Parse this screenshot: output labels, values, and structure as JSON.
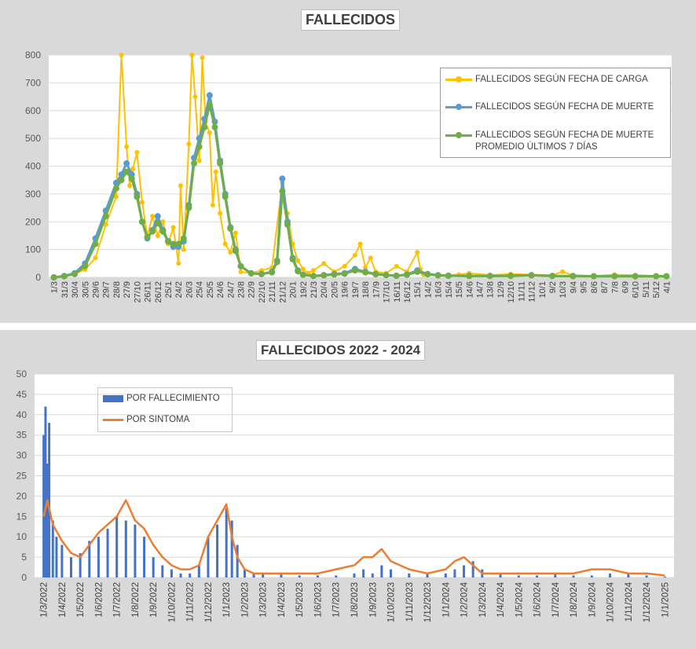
{
  "chart_data": [
    {
      "type": "line",
      "title": "FALLECIDOS",
      "ylim": [
        0,
        800
      ],
      "yticks": [
        0,
        100,
        200,
        300,
        400,
        500,
        600,
        700,
        800
      ],
      "grid": true,
      "legend_position": "top-right",
      "categories": [
        "1/3",
        "31/3",
        "30/4",
        "30/5",
        "29/6",
        "29/7",
        "28/8",
        "27/9",
        "27/10",
        "26/11",
        "26/12",
        "25/1",
        "24/2",
        "26/3",
        "25/4",
        "25/5",
        "24/6",
        "24/7",
        "23/8",
        "22/9",
        "22/10",
        "21/11",
        "21/12",
        "20/1",
        "19/2",
        "21/3",
        "20/4",
        "20/5",
        "19/6",
        "19/7",
        "18/8",
        "17/9",
        "17/10",
        "16/11",
        "16/12",
        "15/1",
        "14/2",
        "16/3",
        "15/4",
        "15/5",
        "14/6",
        "14/7",
        "13/8",
        "12/9",
        "12/10",
        "11/11",
        "11/12",
        "10/1",
        "9/2",
        "10/3",
        "9/4",
        "9/5",
        "8/6",
        "8/7",
        "7/8",
        "6/9",
        "6/10",
        "5/11",
        "5/12",
        "4/1"
      ],
      "series": [
        {
          "name": "FALLECIDOS SEGÚN FECHA DE CARGA",
          "color": "#ffc000",
          "x": [
            0,
            2,
            3,
            4,
            5,
            6,
            6.5,
            7,
            7.3,
            7.6,
            8,
            8.5,
            9,
            9.5,
            10,
            10.5,
            11,
            11.5,
            12,
            12.2,
            12.5,
            13,
            13.3,
            13.6,
            14,
            14.3,
            14.6,
            15,
            15.3,
            15.6,
            16,
            16.5,
            17,
            17.5,
            18,
            19,
            20,
            21,
            22,
            22.5,
            23,
            23.5,
            24,
            24.5,
            25,
            26,
            27,
            28,
            29,
            29.5,
            30,
            30.5,
            31,
            32,
            33,
            34,
            35,
            35.3,
            35.6,
            36,
            37,
            38,
            39,
            40,
            42,
            44,
            46,
            48,
            49,
            50,
            52,
            54,
            56,
            58,
            59
          ],
          "y": [
            0,
            12,
            28,
            70,
            190,
            290,
            800,
            470,
            330,
            390,
            450,
            270,
            150,
            220,
            150,
            200,
            120,
            180,
            50,
            330,
            100,
            480,
            800,
            650,
            420,
            790,
            560,
            520,
            260,
            380,
            230,
            120,
            90,
            160,
            20,
            15,
            25,
            35,
            340,
            230,
            120,
            60,
            30,
            15,
            25,
            50,
            20,
            40,
            80,
            120,
            35,
            70,
            20,
            15,
            40,
            20,
            90,
            30,
            10,
            8,
            10,
            8,
            10,
            15,
            8,
            12,
            10,
            8,
            20,
            8,
            5,
            10,
            8,
            5,
            5
          ]
        },
        {
          "name": "FALLECIDOS SEGÚN FECHA DE MUERTE",
          "color": "#5b9bd5",
          "x": [
            0,
            1,
            2,
            3,
            4,
            5,
            6,
            6.5,
            7,
            7.5,
            8,
            8.5,
            9,
            9.5,
            10,
            10.5,
            11,
            11.5,
            12,
            12.5,
            13,
            13.5,
            14,
            14.5,
            15,
            15.5,
            16,
            16.5,
            17,
            17.5,
            18,
            19,
            20,
            21,
            21.5,
            22,
            22.5,
            23,
            23.5,
            24,
            25,
            26,
            27,
            28,
            29,
            30,
            31,
            32,
            33,
            34,
            35,
            36,
            37,
            38,
            40,
            42,
            44,
            46,
            48,
            50,
            52,
            54,
            56,
            58,
            59
          ],
          "y": [
            0,
            5,
            15,
            50,
            140,
            240,
            340,
            370,
            410,
            370,
            300,
            200,
            140,
            170,
            220,
            170,
            130,
            110,
            110,
            130,
            260,
            430,
            500,
            570,
            655,
            560,
            420,
            300,
            180,
            100,
            40,
            15,
            12,
            20,
            60,
            355,
            200,
            70,
            25,
            10,
            5,
            8,
            12,
            15,
            30,
            20,
            12,
            8,
            6,
            10,
            25,
            12,
            8,
            6,
            5,
            5,
            6,
            8,
            5,
            5,
            4,
            4,
            4,
            4,
            4
          ]
        },
        {
          "name": "FALLECIDOS SEGÚN FECHA DE MUERTE PROMEDIO ÚLTIMOS 7 DÍAS",
          "color": "#70ad47",
          "x": [
            0,
            1,
            2,
            3,
            4,
            5,
            6,
            6.5,
            7,
            7.5,
            8,
            8.5,
            9,
            9.5,
            10,
            10.5,
            11,
            11.5,
            12,
            12.5,
            13,
            13.5,
            14,
            14.5,
            15,
            15.5,
            16,
            16.5,
            17,
            17.5,
            18,
            19,
            20,
            21,
            21.5,
            22,
            22.5,
            23,
            23.5,
            24,
            25,
            26,
            27,
            28,
            29,
            30,
            31,
            32,
            33,
            34,
            35,
            36,
            37,
            38,
            40,
            42,
            44,
            46,
            48,
            50,
            52,
            54,
            56,
            58,
            59
          ],
          "y": [
            0,
            4,
            12,
            40,
            120,
            220,
            320,
            350,
            380,
            355,
            290,
            200,
            145,
            165,
            195,
            165,
            130,
            120,
            120,
            140,
            250,
            410,
            470,
            540,
            620,
            540,
            410,
            290,
            175,
            95,
            40,
            14,
            12,
            18,
            55,
            310,
            190,
            65,
            22,
            9,
            5,
            7,
            10,
            13,
            25,
            18,
            11,
            8,
            6,
            9,
            20,
            11,
            7,
            6,
            5,
            5,
            5,
            7,
            5,
            4,
            4,
            4,
            4,
            4,
            4
          ]
        }
      ]
    },
    {
      "type": "bar",
      "title": "FALLECIDOS 2022 - 2024",
      "ylim": [
        0,
        50
      ],
      "yticks": [
        0,
        5,
        10,
        15,
        20,
        25,
        30,
        35,
        40,
        45,
        50
      ],
      "grid": true,
      "legend_position": "top-left",
      "categories": [
        "1/3/2022",
        "1/4/2022",
        "1/5/2022",
        "1/6/2022",
        "1/7/2022",
        "1/8/2022",
        "1/9/2022",
        "1/10/2022",
        "1/11/2022",
        "1/12/2022",
        "1/1/2023",
        "1/2/2023",
        "1/3/2023",
        "1/4/2023",
        "1/5/2023",
        "1/6/2023",
        "1/7/2023",
        "1/8/2023",
        "1/9/2023",
        "1/10/2023",
        "1/11/2023",
        "1/12/2023",
        "1/1/2024",
        "1/2/2024",
        "1/3/2024",
        "1/4/2024",
        "1/5/2024",
        "1/6/2024",
        "1/7/2024",
        "1/8/2024",
        "1/9/2024",
        "1/10/2024",
        "1/11/2024",
        "1/12/2024",
        "1/1/2025"
      ],
      "series": [
        {
          "name": "POR FALLECIMIENTO",
          "color": "#4472c4",
          "type": "bar",
          "x": [
            0,
            0.1,
            0.2,
            0.3,
            0.5,
            0.7,
            1,
            1.5,
            2,
            2.5,
            3,
            3.5,
            4,
            4.5,
            5,
            5.5,
            6,
            6.5,
            7,
            7.5,
            8,
            8.5,
            9,
            9.5,
            10,
            10.3,
            10.6,
            11,
            11.5,
            12,
            13,
            14,
            15,
            16,
            17,
            17.5,
            18,
            18.5,
            19,
            20,
            21,
            22,
            22.5,
            23,
            23.5,
            24,
            25,
            26,
            27,
            28,
            29,
            30,
            31,
            32,
            33,
            34
          ],
          "y": [
            35,
            42,
            28,
            38,
            14,
            10,
            8,
            5,
            6,
            9,
            10,
            12,
            15,
            14,
            13,
            10,
            5,
            3,
            2,
            1,
            1,
            3,
            10,
            13,
            17,
            14,
            8,
            2,
            1,
            1,
            1,
            0.5,
            0.5,
            0.5,
            1,
            2,
            1,
            3,
            2,
            1,
            1,
            1,
            2,
            3,
            4,
            2,
            1,
            0.5,
            0.5,
            1,
            0.5,
            0.5,
            1,
            1,
            0.5,
            0.2
          ]
        },
        {
          "name": "POR SINTOMA",
          "color": "#ed7d31",
          "type": "line",
          "x": [
            0,
            0.2,
            0.5,
            1,
            1.5,
            2,
            2.5,
            3,
            3.5,
            4,
            4.5,
            5,
            5.5,
            6,
            6.5,
            7,
            7.5,
            8,
            8.5,
            9,
            9.5,
            10,
            10.3,
            10.6,
            11,
            11.5,
            12,
            13,
            14,
            15,
            16,
            17,
            17.5,
            18,
            18.5,
            19,
            20,
            21,
            22,
            22.5,
            23,
            23.5,
            24,
            25,
            26,
            27,
            28,
            29,
            30,
            31,
            32,
            33,
            34
          ],
          "y": [
            15,
            19,
            13,
            9,
            6,
            5,
            8,
            11,
            13,
            15,
            19,
            14,
            12,
            8,
            5,
            3,
            2,
            2,
            3,
            10,
            14,
            18,
            10,
            5,
            2,
            1,
            1,
            1,
            1,
            1,
            2,
            3,
            5,
            5,
            7,
            4,
            2,
            1,
            2,
            4,
            5,
            3,
            1,
            1,
            1,
            1,
            1,
            1,
            2,
            2,
            1,
            1,
            0.5
          ]
        }
      ]
    }
  ]
}
